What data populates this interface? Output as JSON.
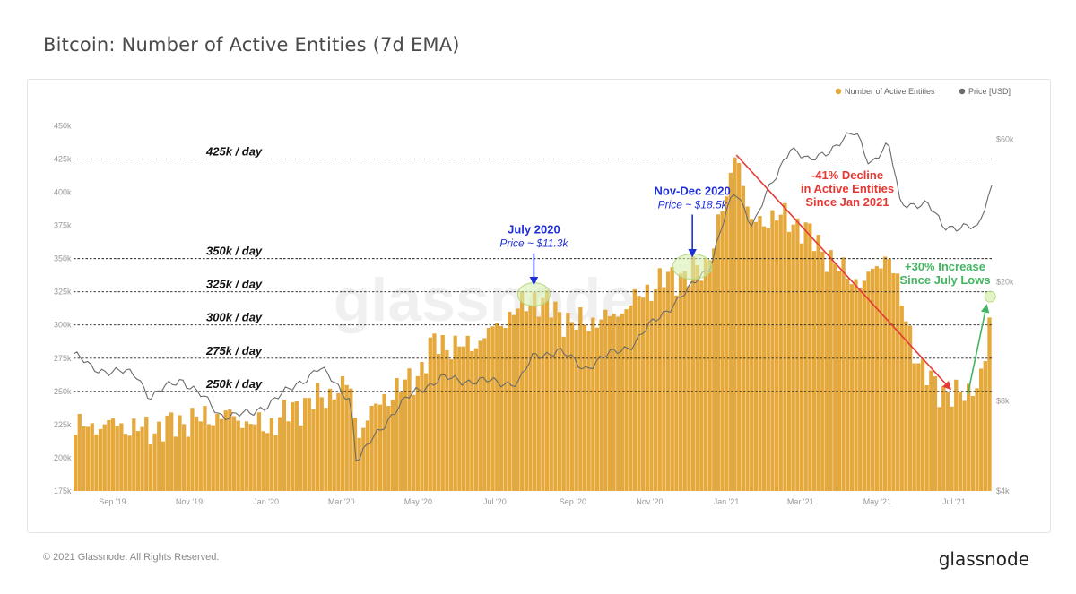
{
  "header": {
    "title": "Bitcoin: Number of Active Entities (7d EMA)"
  },
  "footer": {
    "copyright": "© 2021 Glassnode. All Rights Reserved.",
    "logo": "glassnode"
  },
  "colors": {
    "bars": "#e5a83b",
    "price": "#6b6b6b",
    "arrow_decline": "#e53935",
    "arrow_increase": "#43b562",
    "blue_annotation": "#1f2fd6"
  },
  "chart_data": {
    "type": "bar",
    "title": "Bitcoin: Number of Active Entities (7d EMA)",
    "watermark": "glassnode",
    "legend": {
      "placement": "top-right",
      "entries": [
        "Number of Active Entities",
        "Price [USD]"
      ]
    },
    "x_ticks": [
      "Sep '19",
      "Nov '19",
      "Jan '20",
      "Mar '20",
      "May '20",
      "Jul '20",
      "Sep '20",
      "Nov '20",
      "Jan '21",
      "Mar '21",
      "May '21",
      "Jul '21"
    ],
    "x_range": [
      "2019-08-01",
      "2021-07-31"
    ],
    "y_left": {
      "ticks": [
        "175k",
        "200k",
        "225k",
        "250k",
        "275k",
        "300k",
        "325k",
        "350k",
        "375k",
        "400k",
        "425k",
        "450k"
      ],
      "range": [
        175000,
        455000
      ]
    },
    "y_right": {
      "scale": "log",
      "ticks": [
        "$4k",
        "$8k",
        "$20k",
        "$60k"
      ],
      "range": [
        4000,
        70000
      ]
    },
    "reference_lines": [
      {
        "value": 425000,
        "label": "425k / day"
      },
      {
        "value": 350000,
        "label": "350k / day"
      },
      {
        "value": 325000,
        "label": "325k / day"
      },
      {
        "value": 300000,
        "label": "300k / day"
      },
      {
        "value": 275000,
        "label": "275k / day"
      },
      {
        "value": 250000,
        "label": "250k / day"
      }
    ],
    "series": [
      {
        "name": "Number of Active Entities",
        "kind": "bar",
        "points": [
          [
            "2019-08-01",
            222000
          ],
          [
            "2019-09-01",
            225000
          ],
          [
            "2019-10-01",
            220000
          ],
          [
            "2019-11-01",
            228000
          ],
          [
            "2019-12-01",
            232000
          ],
          [
            "2020-01-01",
            222000
          ],
          [
            "2020-01-25",
            238000
          ],
          [
            "2020-02-15",
            245000
          ],
          [
            "2020-03-08",
            255000
          ],
          [
            "2020-03-14",
            218000
          ],
          [
            "2020-04-01",
            242000
          ],
          [
            "2020-05-01",
            262000
          ],
          [
            "2020-05-15",
            288000
          ],
          [
            "2020-06-01",
            282000
          ],
          [
            "2020-06-20",
            288000
          ],
          [
            "2020-07-10",
            305000
          ],
          [
            "2020-08-01",
            320000
          ],
          [
            "2020-08-15",
            313000
          ],
          [
            "2020-09-01",
            300000
          ],
          [
            "2020-10-01",
            305000
          ],
          [
            "2020-10-20",
            318000
          ],
          [
            "2020-11-10",
            333000
          ],
          [
            "2020-12-01",
            338000
          ],
          [
            "2020-12-15",
            342000
          ],
          [
            "2021-01-03",
            400000
          ],
          [
            "2021-01-09",
            438000
          ],
          [
            "2021-01-20",
            375000
          ],
          [
            "2021-02-10",
            382000
          ],
          [
            "2021-03-01",
            375000
          ],
          [
            "2021-04-01",
            342000
          ],
          [
            "2021-04-20",
            330000
          ],
          [
            "2021-05-10",
            355000
          ],
          [
            "2021-05-20",
            318000
          ],
          [
            "2021-06-05",
            265000
          ],
          [
            "2021-06-20",
            252000
          ],
          [
            "2021-07-01",
            245000
          ],
          [
            "2021-07-15",
            252000
          ],
          [
            "2021-07-25",
            262000
          ],
          [
            "2021-07-31",
            318000
          ]
        ]
      },
      {
        "name": "Price [USD]",
        "kind": "line",
        "points": [
          [
            "2019-08-01",
            11500
          ],
          [
            "2019-08-15",
            10300
          ],
          [
            "2019-09-20",
            9800
          ],
          [
            "2019-10-01",
            8200
          ],
          [
            "2019-10-26",
            9500
          ],
          [
            "2019-11-25",
            7200
          ],
          [
            "2019-12-20",
            7200
          ],
          [
            "2020-01-20",
            8700
          ],
          [
            "2020-02-12",
            10300
          ],
          [
            "2020-03-08",
            8100
          ],
          [
            "2020-03-13",
            4900
          ],
          [
            "2020-04-01",
            6500
          ],
          [
            "2020-04-30",
            8700
          ],
          [
            "2020-05-20",
            9500
          ],
          [
            "2020-06-20",
            9300
          ],
          [
            "2020-07-20",
            9200
          ],
          [
            "2020-08-01",
            11300
          ],
          [
            "2020-08-20",
            11800
          ],
          [
            "2020-09-10",
            10300
          ],
          [
            "2020-10-20",
            12500
          ],
          [
            "2020-11-10",
            15500
          ],
          [
            "2020-12-01",
            18500
          ],
          [
            "2020-12-20",
            23000
          ],
          [
            "2021-01-08",
            40000
          ],
          [
            "2021-01-22",
            31000
          ],
          [
            "2021-02-10",
            45000
          ],
          [
            "2021-02-21",
            57000
          ],
          [
            "2021-03-08",
            50000
          ],
          [
            "2021-04-14",
            63000
          ],
          [
            "2021-04-25",
            50000
          ],
          [
            "2021-05-10",
            57000
          ],
          [
            "2021-05-19",
            37000
          ],
          [
            "2021-06-10",
            36000
          ],
          [
            "2021-06-22",
            31000
          ],
          [
            "2021-07-20",
            30000
          ],
          [
            "2021-07-31",
            42000
          ]
        ]
      }
    ],
    "annotations": [
      {
        "line1": "July 2020",
        "line2": "Price ~ $11.3k",
        "date": "2020-08-01",
        "value": 323000
      },
      {
        "line1": "Nov-Dec 2020",
        "line2": "Price ~ $18.5k",
        "date": "2020-12-05",
        "value": 344000
      },
      {
        "lines": [
          "-41% Decline",
          "in Active Entities",
          "Since Jan 2021"
        ],
        "from": [
          "2021-01-09",
          428000
        ],
        "to": [
          "2021-06-28",
          252000
        ]
      },
      {
        "lines": [
          "+30% Increase",
          "Since July Lows"
        ],
        "from": [
          "2021-07-12",
          248000
        ],
        "to": [
          "2021-07-29",
          320000
        ]
      }
    ]
  }
}
